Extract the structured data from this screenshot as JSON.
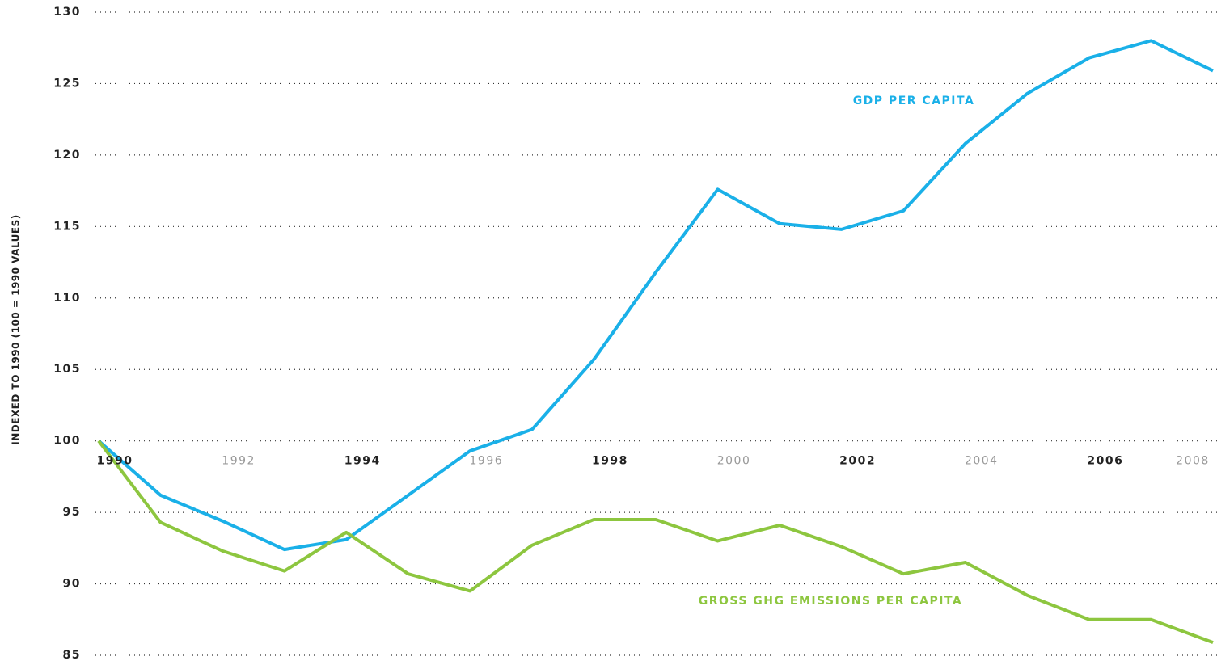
{
  "chart_data": {
    "type": "line",
    "y_label": "INDEXED TO 1990 (100 = 1990 VALUES)",
    "x": [
      1990,
      1991,
      1992,
      1993,
      1994,
      1995,
      1996,
      1997,
      1998,
      1999,
      2000,
      2001,
      2002,
      2003,
      2004,
      2005,
      2006,
      2007,
      2008
    ],
    "xlim": [
      1990,
      2008
    ],
    "xticks": [
      1990,
      1992,
      1994,
      1996,
      1998,
      2000,
      2002,
      2004,
      2006,
      2008
    ],
    "ylim": [
      85,
      130
    ],
    "yticks": [
      85,
      90,
      95,
      100,
      105,
      110,
      115,
      120,
      125,
      130
    ],
    "grid": true,
    "series": [
      {
        "name": "GDP PER CAPITA",
        "color": "#1ab0e8",
        "values": [
          100,
          96.2,
          94.4,
          92.4,
          93.1,
          96.2,
          99.3,
          100.8,
          105.7,
          111.8,
          117.6,
          115.2,
          114.8,
          116.1,
          120.8,
          124.3,
          126.8,
          128.0,
          125.9
        ]
      },
      {
        "name": "GROSS GHG EMISSIONS PER CAPITA",
        "color": "#8dc63f",
        "values": [
          100,
          94.3,
          92.3,
          90.9,
          93.6,
          90.7,
          89.5,
          92.7,
          94.5,
          94.5,
          93.0,
          94.1,
          92.6,
          90.7,
          91.5,
          89.2,
          87.5,
          87.5,
          85.9
        ]
      }
    ]
  }
}
